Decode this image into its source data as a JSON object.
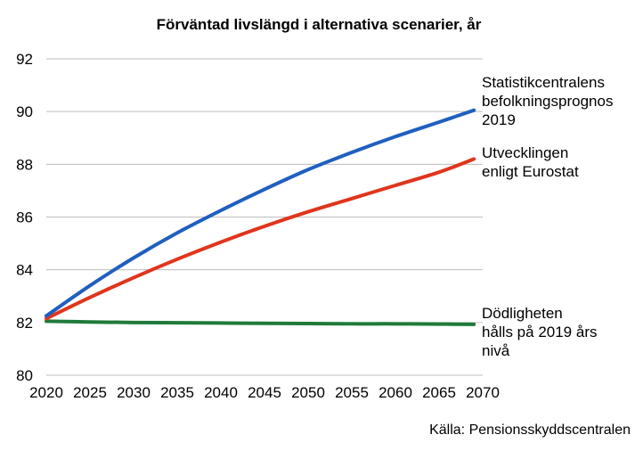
{
  "chart_data": {
    "type": "line",
    "title": "Förväntad livslängd i alternativa scenarier, år",
    "xlabel": "",
    "ylabel": "",
    "xlim": [
      2020,
      2070
    ],
    "ylim": [
      80,
      92
    ],
    "x_ticks": [
      2020,
      2025,
      2030,
      2035,
      2040,
      2045,
      2050,
      2055,
      2060,
      2065,
      2070
    ],
    "y_ticks": [
      80,
      82,
      84,
      86,
      88,
      90,
      92
    ],
    "grid": "horizontal",
    "legend": "right, inline labels",
    "x": [
      2020,
      2025,
      2030,
      2035,
      2040,
      2045,
      2050,
      2055,
      2060,
      2065,
      2069
    ],
    "series": [
      {
        "name": "Statistikcentralens befolkningsprognos 2019",
        "label_lines": [
          "Statistikcentralens",
          "befolkningsprognos",
          "2019"
        ],
        "color": "#1f5fbf",
        "values": [
          82.25,
          83.4,
          84.45,
          85.4,
          86.25,
          87.05,
          87.8,
          88.45,
          89.05,
          89.6,
          90.05
        ]
      },
      {
        "name": "Utvecklingen enligt Eurostat",
        "label_lines": [
          "Utvecklingen",
          "enligt Eurostat"
        ],
        "color": "#e0351c",
        "values": [
          82.15,
          82.95,
          83.7,
          84.4,
          85.05,
          85.65,
          86.2,
          86.7,
          87.2,
          87.7,
          88.2
        ]
      },
      {
        "name": "Dödligheten hålls på 2019 års nivå",
        "label_lines": [
          "Dödligheten",
          "hålls på 2019 års",
          "nivå"
        ],
        "color": "#1f7a3a",
        "values": [
          82.05,
          82.02,
          82.0,
          81.99,
          81.98,
          81.97,
          81.96,
          81.95,
          81.95,
          81.94,
          81.93
        ]
      }
    ],
    "source": "Källa: Pensionsskyddscentralen"
  }
}
